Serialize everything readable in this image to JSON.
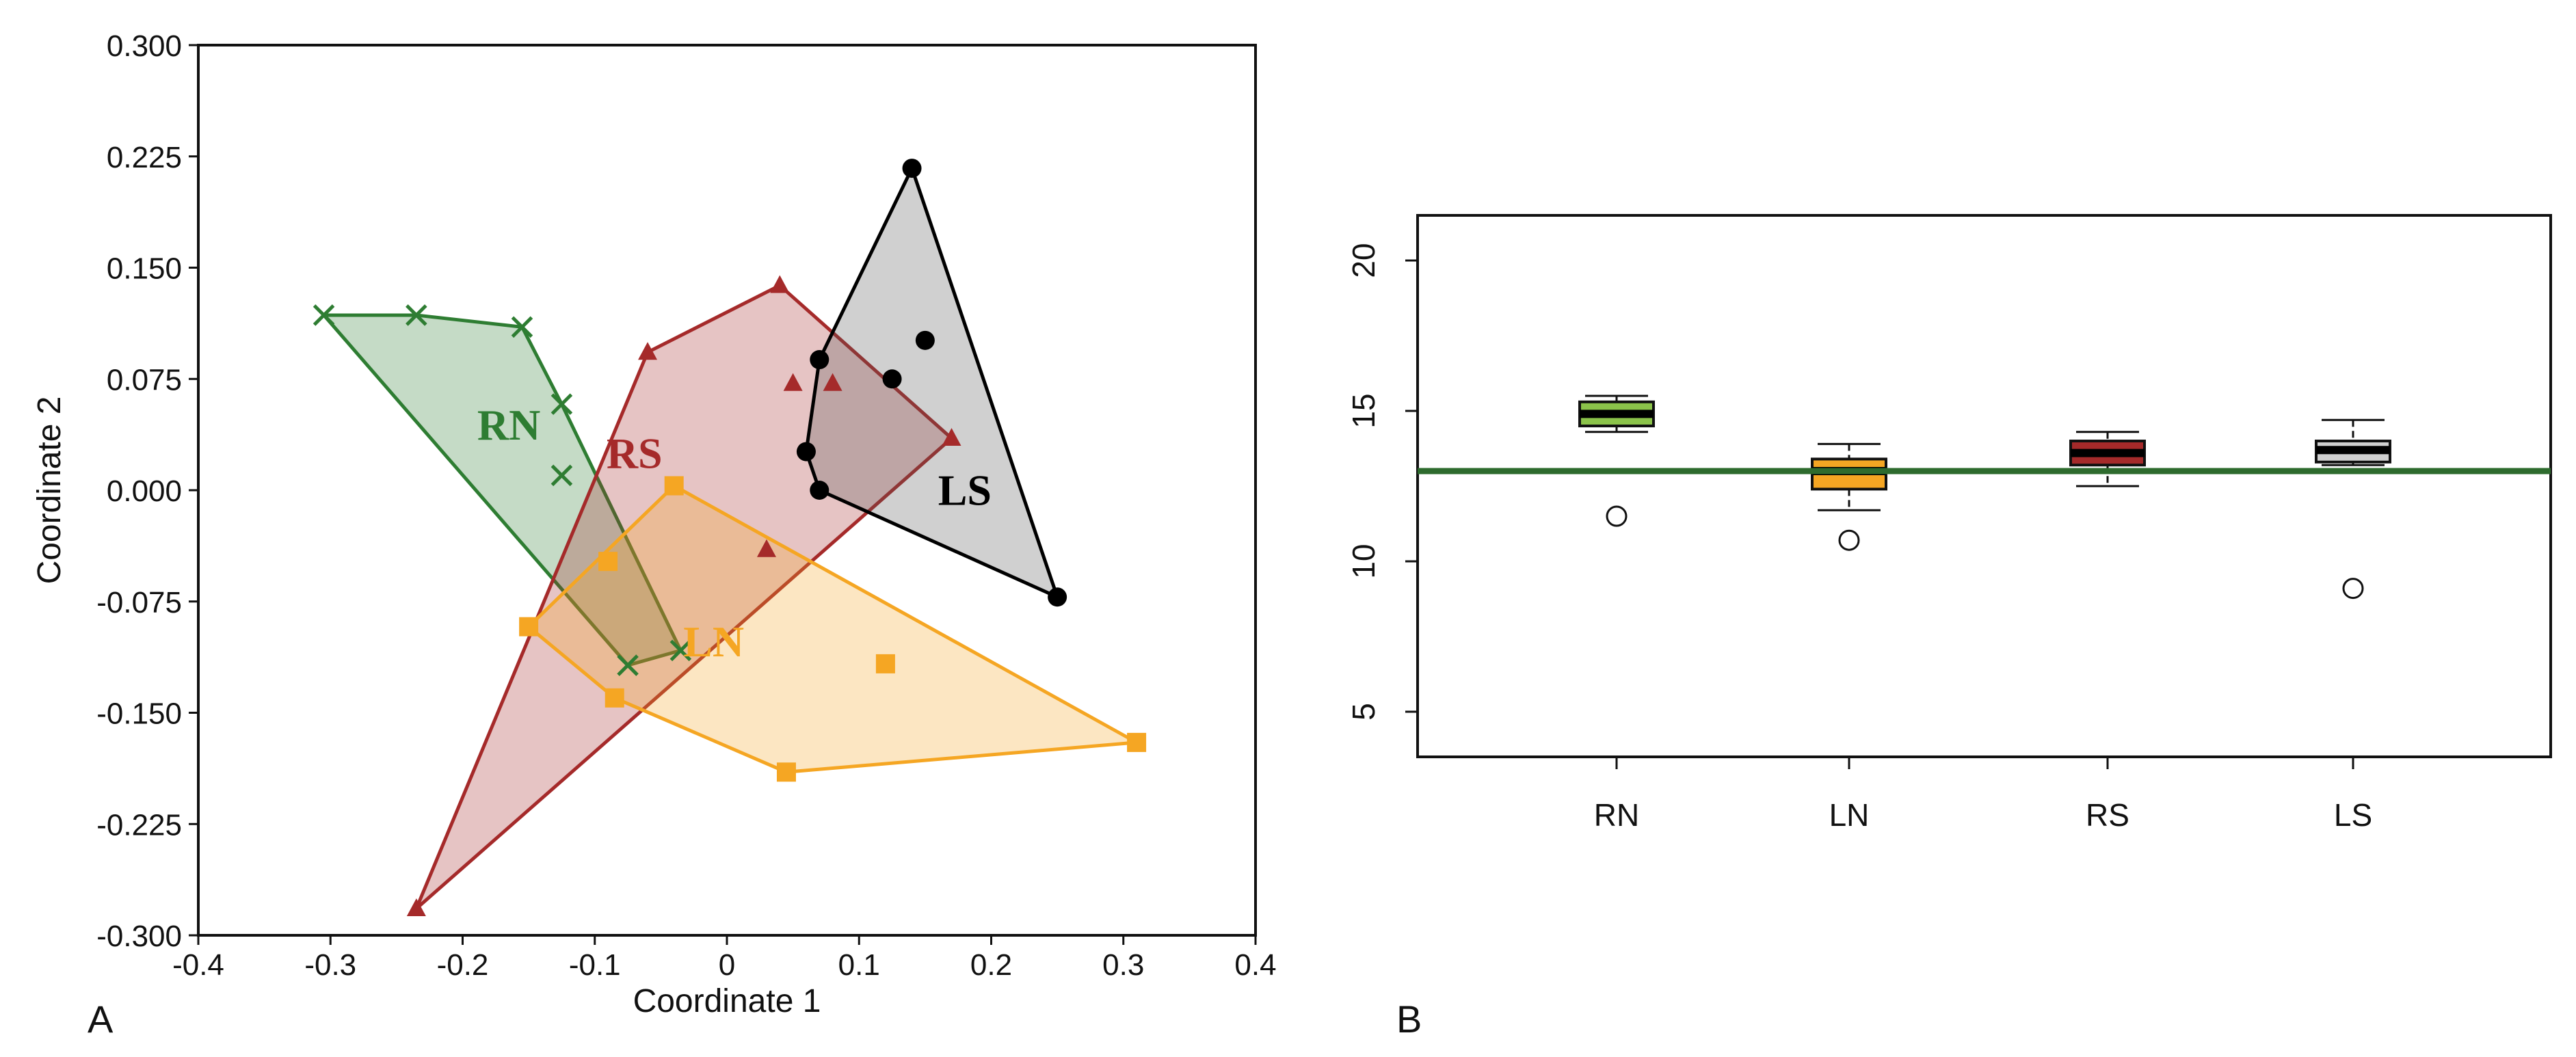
{
  "chart_data": [
    {
      "panel": "A",
      "type": "scatter",
      "xlabel": "Coordinate 1",
      "ylabel": "Coordinate 2",
      "xlim": [
        -0.4,
        0.4
      ],
      "ylim": [
        -0.3,
        0.3
      ],
      "x_ticks": [
        "-0.4",
        "-0.3",
        "-0.2",
        "-0.1",
        "0",
        "0.1",
        "0.2",
        "0.3",
        "0.4"
      ],
      "y_ticks": [
        "0.300",
        "0.225",
        "0.150",
        "0.075",
        "0.000",
        "-0.075",
        "-0.150",
        "-0.225",
        "-0.300"
      ],
      "grid": false,
      "series": [
        {
          "name": "RN",
          "marker": "x",
          "color": "#2e7d32",
          "fill": "#2e7d32",
          "points": [
            [
              -0.305,
              0.118
            ],
            [
              -0.235,
              0.118
            ],
            [
              -0.155,
              0.11
            ],
            [
              -0.125,
              0.058
            ],
            [
              -0.125,
              0.01
            ],
            [
              -0.075,
              -0.118
            ],
            [
              -0.035,
              -0.108
            ]
          ],
          "hull": [
            [
              -0.305,
              0.118
            ],
            [
              -0.235,
              0.118
            ],
            [
              -0.155,
              0.11
            ],
            [
              -0.125,
              0.058
            ],
            [
              -0.035,
              -0.108
            ],
            [
              -0.075,
              -0.118
            ]
          ],
          "label_pos": [
            -0.165,
            0.034
          ]
        },
        {
          "name": "RS",
          "marker": "triangle",
          "color": "#a52a2a",
          "fill": "#a52a2a",
          "points": [
            [
              -0.235,
              -0.282
            ],
            [
              -0.06,
              0.093
            ],
            [
              0.04,
              0.138
            ],
            [
              0.17,
              0.035
            ],
            [
              0.05,
              0.072
            ],
            [
              0.08,
              0.072
            ],
            [
              0.03,
              -0.04
            ]
          ],
          "hull": [
            [
              -0.235,
              -0.282
            ],
            [
              -0.06,
              0.093
            ],
            [
              0.04,
              0.138
            ],
            [
              0.17,
              0.035
            ]
          ],
          "label_pos": [
            -0.07,
            0.015
          ]
        },
        {
          "name": "LS",
          "marker": "circle",
          "color": "#000000",
          "fill": "#555555",
          "points": [
            [
              0.14,
              0.217
            ],
            [
              0.15,
              0.101
            ],
            [
              0.125,
              0.075
            ],
            [
              0.07,
              0.088
            ],
            [
              0.06,
              0.026
            ],
            [
              0.07,
              0.0
            ],
            [
              0.25,
              -0.072
            ]
          ],
          "hull": [
            [
              0.14,
              0.217
            ],
            [
              0.25,
              -0.072
            ],
            [
              0.07,
              0.0
            ],
            [
              0.06,
              0.026
            ],
            [
              0.07,
              0.088
            ]
          ],
          "label_pos": [
            0.18,
            -0.01
          ]
        },
        {
          "name": "LN",
          "marker": "square",
          "color": "#f5a623",
          "fill": "#f5a623",
          "points": [
            [
              -0.04,
              0.003
            ],
            [
              -0.09,
              -0.048
            ],
            [
              -0.15,
              -0.092
            ],
            [
              -0.085,
              -0.14
            ],
            [
              0.12,
              -0.117
            ],
            [
              0.045,
              -0.19
            ],
            [
              0.31,
              -0.17
            ]
          ],
          "hull": [
            [
              -0.04,
              0.003
            ],
            [
              0.31,
              -0.17
            ],
            [
              0.045,
              -0.19
            ],
            [
              -0.085,
              -0.14
            ],
            [
              -0.15,
              -0.092
            ]
          ],
          "label_pos": [
            -0.01,
            -0.112
          ]
        }
      ]
    },
    {
      "panel": "B",
      "type": "box",
      "categories": [
        "RN",
        "LN",
        "RS",
        "LS"
      ],
      "ylim": [
        3.5,
        21.5
      ],
      "y_ticks": [
        "5",
        "10",
        "15",
        "20"
      ],
      "reference_line": 13.0,
      "reference_color": "#2e6b2e",
      "boxes": [
        {
          "name": "RN",
          "color": "#8bc34a",
          "whisker_low": 14.3,
          "q1": 14.5,
          "median": 14.9,
          "q3": 15.3,
          "whisker_high": 15.5,
          "outliers": [
            11.5
          ]
        },
        {
          "name": "LN",
          "color": "#f5a623",
          "whisker_low": 11.7,
          "q1": 12.4,
          "median": 13.0,
          "q3": 13.4,
          "whisker_high": 13.9,
          "outliers": [
            10.7
          ]
        },
        {
          "name": "RS",
          "color": "#a52a2a",
          "whisker_low": 12.5,
          "q1": 13.2,
          "median": 13.6,
          "q3": 14.0,
          "whisker_high": 14.3,
          "outliers": []
        },
        {
          "name": "LS",
          "color": "#cfcfcf",
          "whisker_low": 13.2,
          "q1": 13.3,
          "median": 13.7,
          "q3": 14.0,
          "whisker_high": 14.7,
          "outliers": [
            9.1
          ]
        }
      ]
    }
  ],
  "panel_labels": [
    "A",
    "B"
  ]
}
